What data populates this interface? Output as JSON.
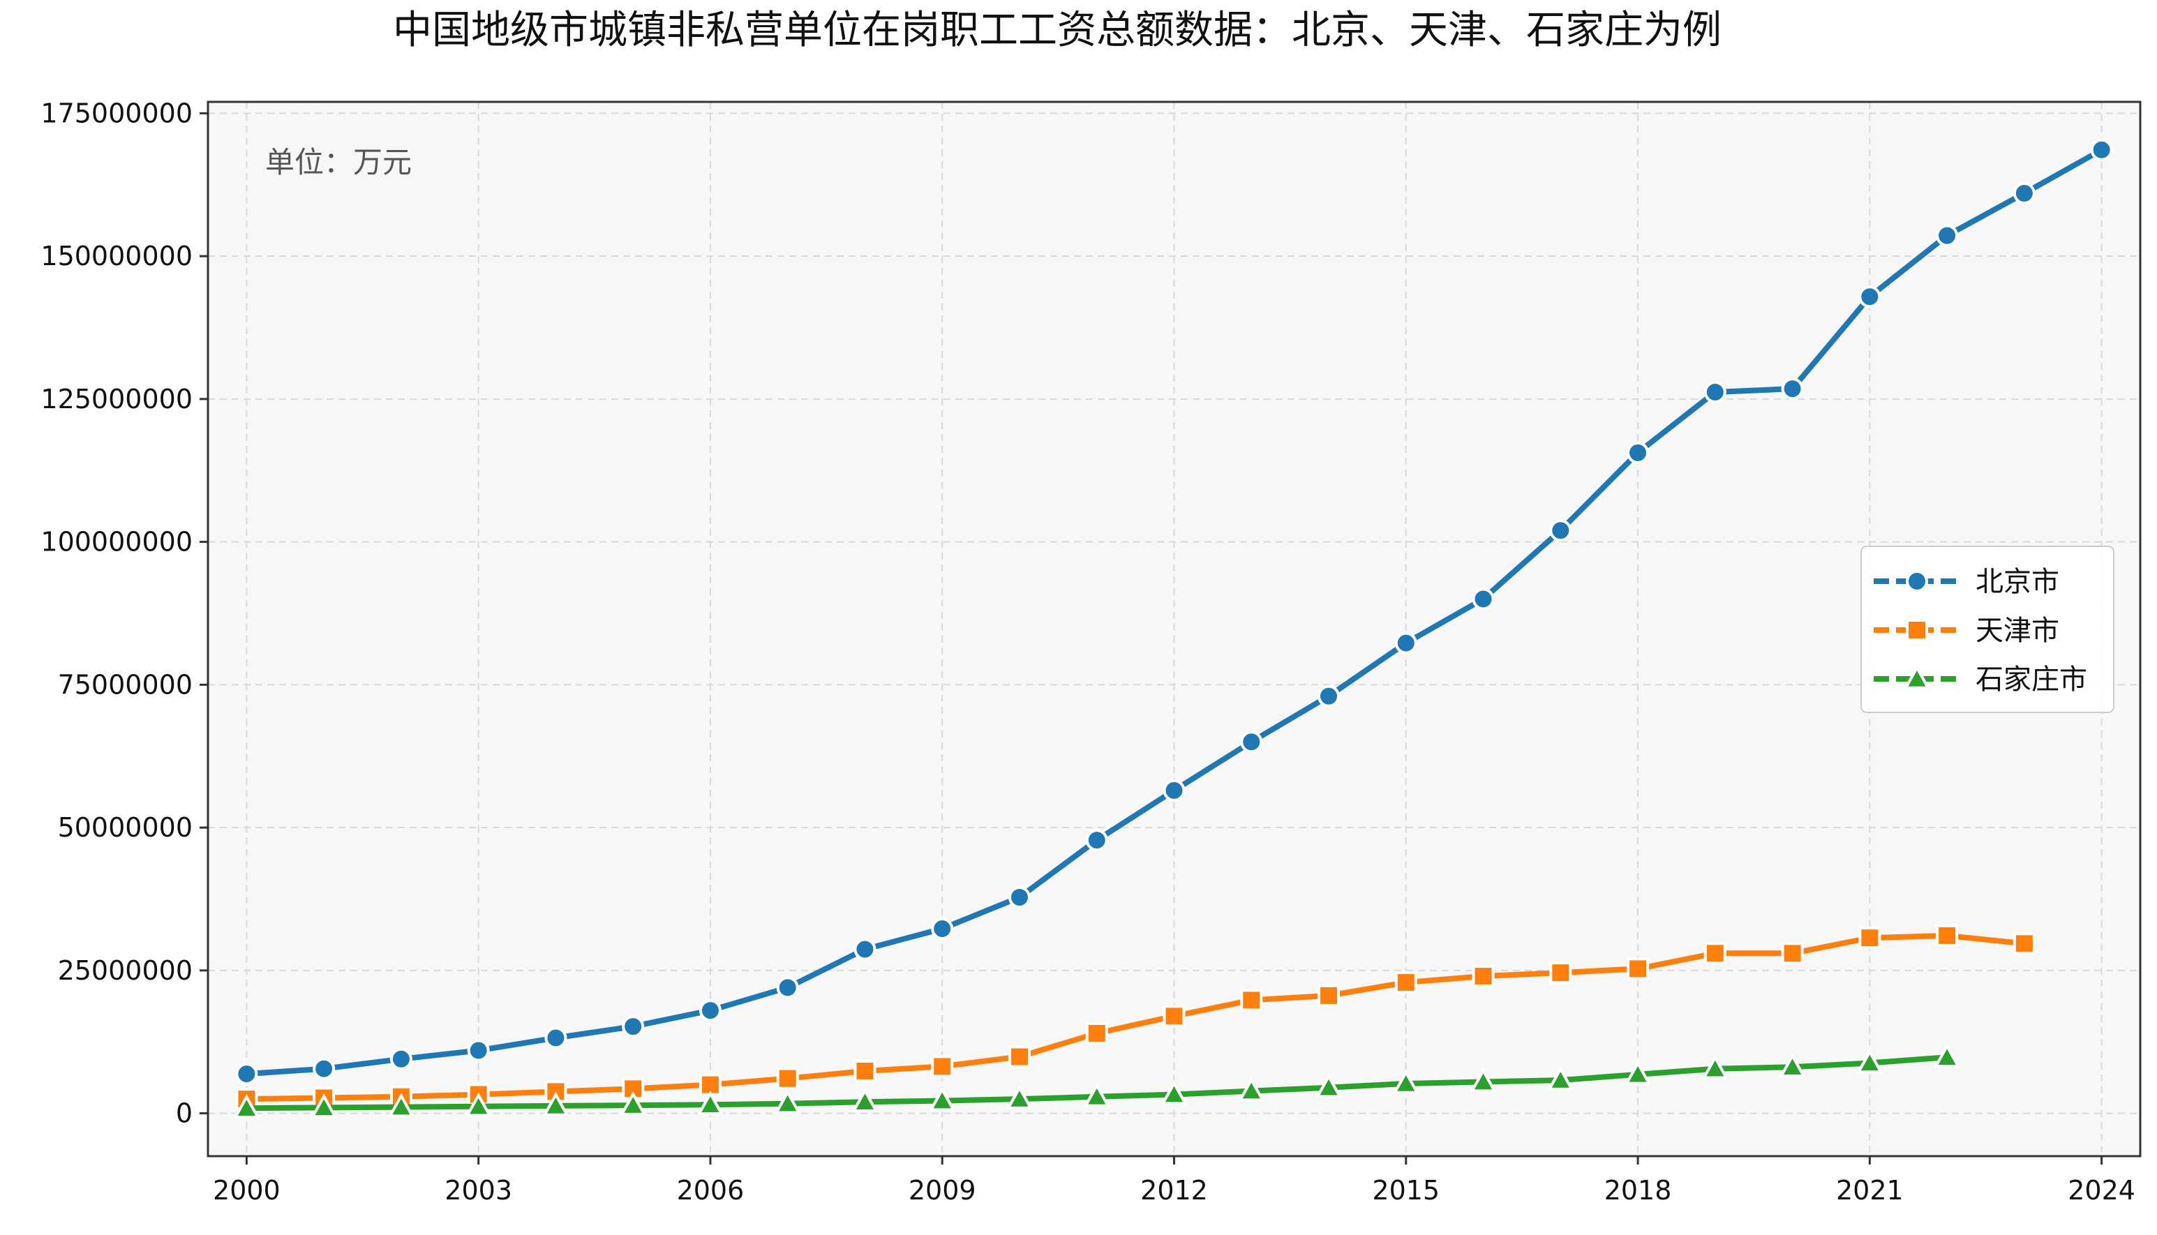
{
  "chart_data": {
    "type": "line",
    "title": "中国地级市城镇非私营单位在岗职工工资总额数据：北京、天津、石家庄为例",
    "annotation": "单位：万元",
    "xlabel": "",
    "ylabel": "",
    "xlim": [
      1999.5,
      2024.5
    ],
    "ylim": [
      -7500000,
      177000000
    ],
    "x_ticks": [
      "2000",
      "2003",
      "2006",
      "2009",
      "2012",
      "2015",
      "2018",
      "2021",
      "2024"
    ],
    "y_ticks": [
      "0",
      "25000000",
      "50000000",
      "75000000",
      "100000000",
      "125000000",
      "150000000",
      "175000000"
    ],
    "grid": true,
    "legend_position": "center-right",
    "series": [
      {
        "name": "北京市",
        "color": "#1f77b4",
        "marker": "circle",
        "x": [
          2000,
          2001,
          2002,
          2003,
          2004,
          2005,
          2006,
          2007,
          2008,
          2009,
          2010,
          2011,
          2012,
          2013,
          2014,
          2015,
          2016,
          2017,
          2018,
          2019,
          2020,
          2021,
          2022,
          2023,
          2024
        ],
        "values": [
          6900000,
          7800000,
          9500000,
          11000000,
          13200000,
          15200000,
          18000000,
          22000000,
          28700000,
          32300000,
          37800000,
          47800000,
          56500000,
          65000000,
          73000000,
          82300000,
          90000000,
          102000000,
          115600000,
          126200000,
          126800000,
          142900000,
          153600000,
          161000000,
          168600000
        ]
      },
      {
        "name": "天津市",
        "color": "#ff7f0e",
        "marker": "square",
        "x": [
          2000,
          2001,
          2002,
          2003,
          2004,
          2005,
          2006,
          2007,
          2008,
          2009,
          2010,
          2011,
          2012,
          2013,
          2014,
          2015,
          2016,
          2017,
          2018,
          2019,
          2020,
          2021,
          2022,
          2023
        ],
        "values": [
          2500000,
          2700000,
          2900000,
          3300000,
          3800000,
          4300000,
          5000000,
          6100000,
          7400000,
          8200000,
          9900000,
          14000000,
          17000000,
          19800000,
          20600000,
          22900000,
          24000000,
          24600000,
          25300000,
          28000000,
          28000000,
          30700000,
          31100000,
          29700000
        ]
      },
      {
        "name": "石家庄市",
        "color": "#2ca02c",
        "marker": "triangle",
        "x": [
          2000,
          2001,
          2002,
          2003,
          2004,
          2005,
          2006,
          2007,
          2008,
          2009,
          2010,
          2011,
          2012,
          2013,
          2014,
          2015,
          2016,
          2017,
          2018,
          2019,
          2020,
          2021,
          2022
        ],
        "values": [
          900000,
          1000000,
          1100000,
          1200000,
          1300000,
          1400000,
          1500000,
          1700000,
          2000000,
          2200000,
          2500000,
          2900000,
          3300000,
          3900000,
          4500000,
          5200000,
          5500000,
          5800000,
          6800000,
          7800000,
          8100000,
          8800000,
          9800000
        ]
      }
    ]
  }
}
